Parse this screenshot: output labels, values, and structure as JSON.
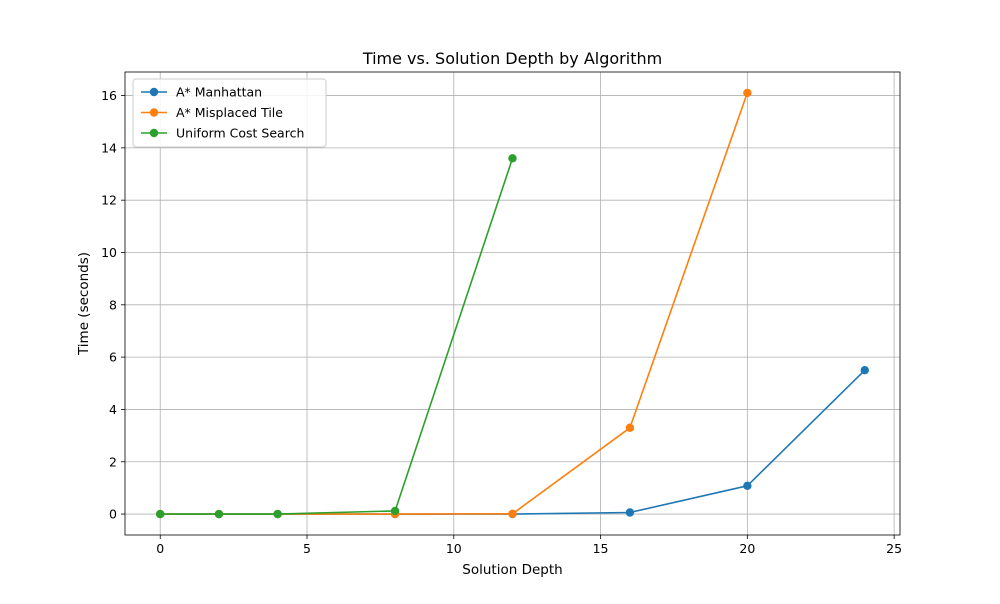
{
  "chart_data": {
    "type": "line",
    "title": "Time vs. Solution Depth by Algorithm",
    "xlabel": "Solution Depth",
    "ylabel": "Time (seconds)",
    "xlim": [
      -1.2,
      25.2
    ],
    "ylim": [
      -0.8,
      16.9
    ],
    "xticks": [
      0,
      5,
      10,
      15,
      20,
      25
    ],
    "yticks": [
      0,
      2,
      4,
      6,
      8,
      10,
      12,
      14,
      16
    ],
    "grid": true,
    "legend_position": "top-left",
    "series": [
      {
        "name": "A* Manhattan",
        "color": "#1f77b4",
        "x": [
          0,
          2,
          4,
          8,
          12,
          16,
          20,
          24
        ],
        "y": [
          0.0,
          0.0,
          0.0,
          0.0,
          0.0,
          0.06,
          1.08,
          5.5
        ]
      },
      {
        "name": "A* Misplaced Tile",
        "color": "#ff7f0e",
        "x": [
          0,
          2,
          4,
          8,
          12,
          16,
          20
        ],
        "y": [
          0.0,
          0.0,
          0.0,
          0.0,
          0.01,
          3.3,
          16.1
        ]
      },
      {
        "name": "Uniform Cost Search",
        "color": "#2ca02c",
        "x": [
          0,
          2,
          4,
          8,
          12
        ],
        "y": [
          0.0,
          0.0,
          0.0,
          0.12,
          13.6
        ]
      }
    ]
  }
}
